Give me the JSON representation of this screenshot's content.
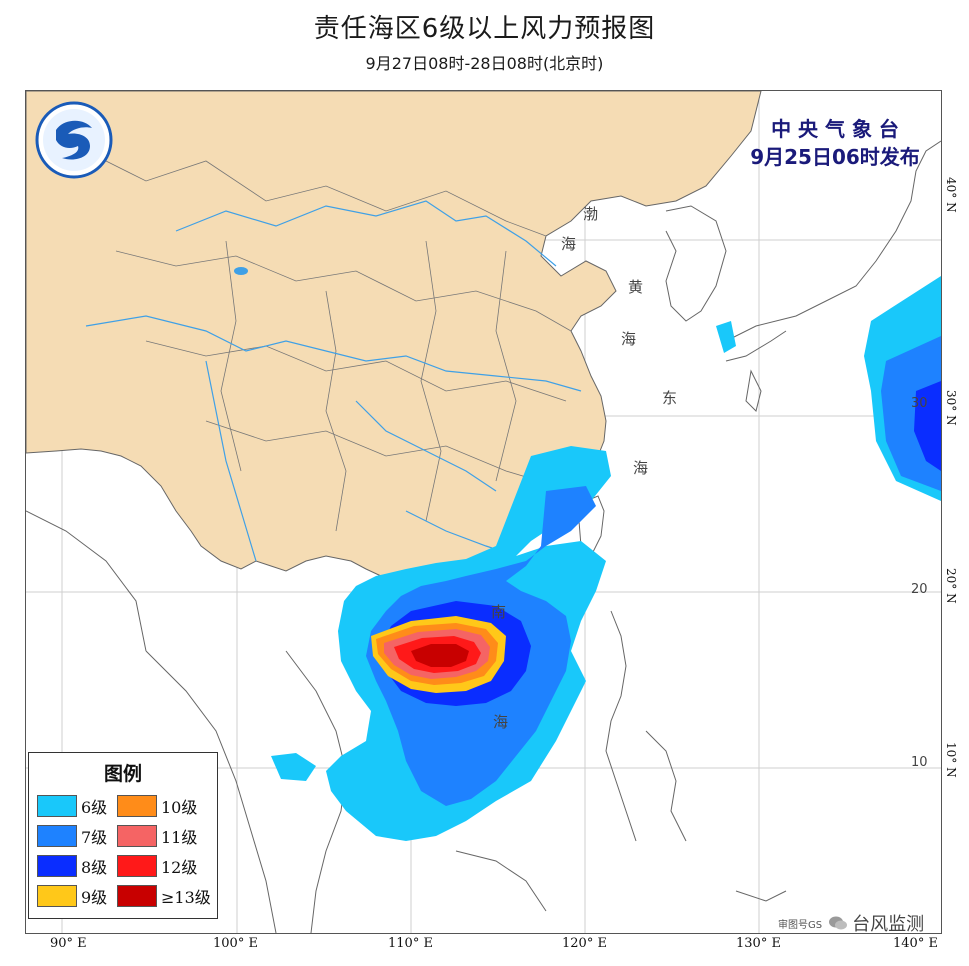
{
  "title": "责任海区6级以上风力预报图",
  "subtitle": "9月27日08时-28日08时(北京时)",
  "issuer": {
    "line1": "中 央 气 象 台",
    "line2": "9月25日06时发布"
  },
  "legend": {
    "title": "图例",
    "items": [
      {
        "label": "6级",
        "color": "#19c8fa"
      },
      {
        "label": "10级",
        "color": "#ff8c19"
      },
      {
        "label": "7级",
        "color": "#1e82ff"
      },
      {
        "label": "11级",
        "color": "#f56464"
      },
      {
        "label": "8级",
        "color": "#0a2dff"
      },
      {
        "label": "12级",
        "color": "#ff1919"
      },
      {
        "label": "9级",
        "color": "#ffc819"
      },
      {
        "label": "≥13级",
        "color": "#c80000"
      }
    ]
  },
  "longitude_labels": [
    "90° E",
    "100° E",
    "110° E",
    "120° E",
    "130° E",
    "140° E"
  ],
  "latitude_labels": [
    "40° N",
    "30° N",
    "20° N",
    "10° N"
  ],
  "inner_lat_labels": [
    "30",
    "20",
    "10"
  ],
  "sea_labels": {
    "bohai": [
      "渤",
      "海"
    ],
    "yellow": [
      "黄",
      "海"
    ],
    "east": [
      "东",
      "海"
    ],
    "south": [
      "南",
      "海"
    ]
  },
  "watermark": {
    "prefix": "审图号GS",
    "text": "台风监测"
  },
  "colors": {
    "land": "#f5dcb4",
    "water": "#ffffff",
    "river": "#3fa0e6",
    "border": "#666666"
  }
}
